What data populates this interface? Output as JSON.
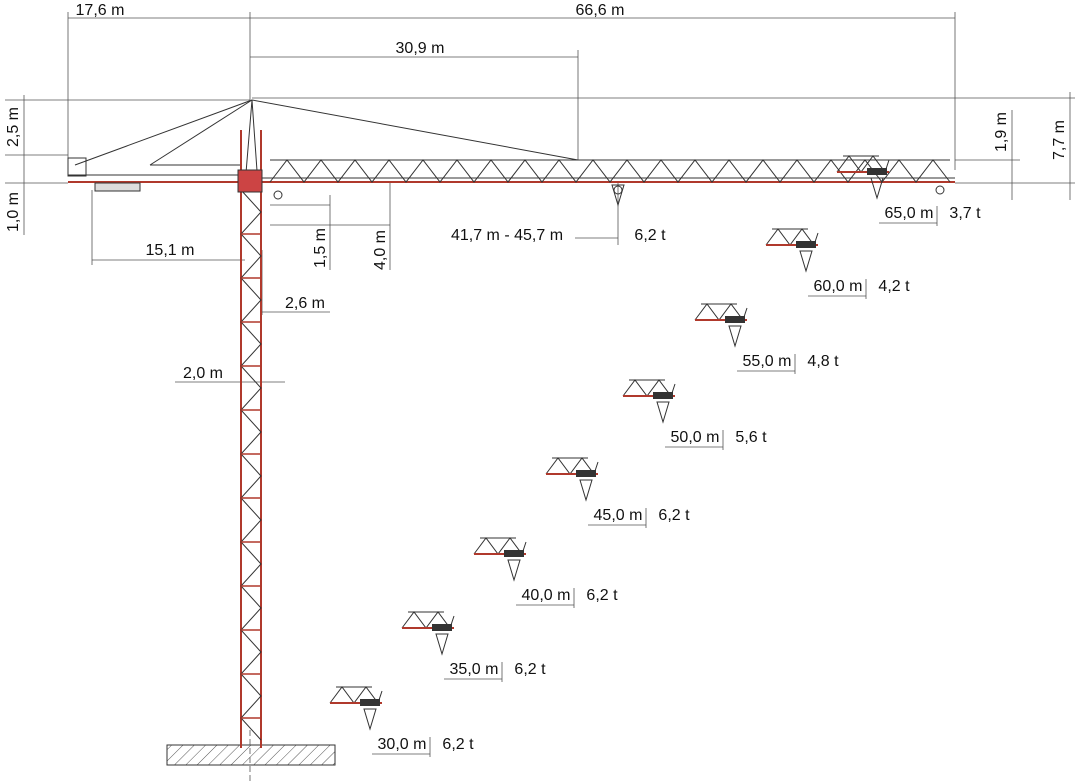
{
  "dimensions": {
    "counter_jib_length": "17,6 m",
    "jib_length": "66,6 m",
    "tie_distance": "30,9 m",
    "apex_above_counter_jib": "2,5 m",
    "counter_jib_depth": "1,0 m",
    "counterweight_distance": "15,1 m",
    "hook_offset": "1,5 m",
    "hook_height": "4,0 m",
    "cab_offset": "2,6 m",
    "mast_width": "2,0 m",
    "jib_tip_height": "1,9 m",
    "apex_height": "7,7 m"
  },
  "intermediate_load": {
    "radius": "41,7 m - 45,7 m",
    "capacity": "6,2 t"
  },
  "load_chart": [
    {
      "radius": "65,0 m",
      "capacity": "3,7 t"
    },
    {
      "radius": "60,0 m",
      "capacity": "4,2 t"
    },
    {
      "radius": "55,0 m",
      "capacity": "4,8 t"
    },
    {
      "radius": "50,0 m",
      "capacity": "5,6 t"
    },
    {
      "radius": "45,0 m",
      "capacity": "6,2 t"
    },
    {
      "radius": "40,0 m",
      "capacity": "6,2 t"
    },
    {
      "radius": "35,0 m",
      "capacity": "6,2 t"
    },
    {
      "radius": "30,0 m",
      "capacity": "6,2 t"
    }
  ]
}
